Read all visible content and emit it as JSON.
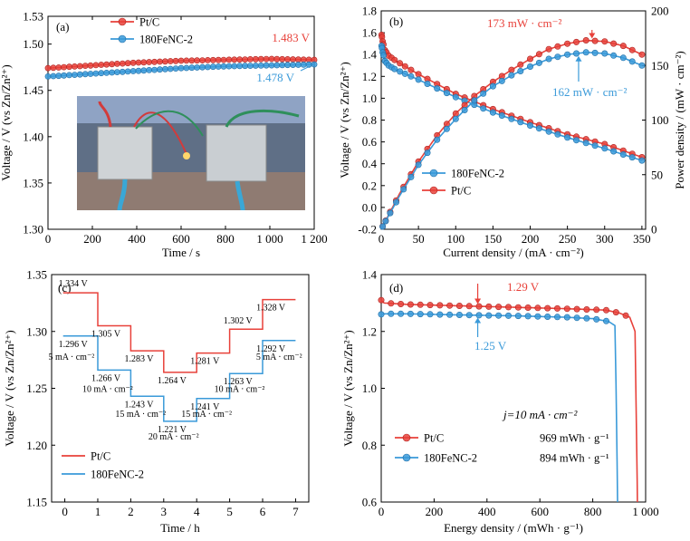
{
  "colors": {
    "red": "#e8413a",
    "blue": "#3a9ad9"
  },
  "chart_data": [
    {
      "panel": "(a)",
      "type": "line",
      "xlabel": "Time / s",
      "ylabel": "Voltage / V (vs Zn/Zn²⁺)",
      "xlim": [
        0,
        1200
      ],
      "ylim": [
        1.3,
        1.53
      ],
      "xticks": [
        0,
        200,
        400,
        600,
        800,
        1000,
        1200
      ],
      "xtick_labels": [
        "0",
        "200",
        "400",
        "600",
        "800",
        "1 000",
        "1 200"
      ],
      "yticks": [
        1.3,
        1.35,
        1.4,
        1.45,
        1.5,
        1.53
      ],
      "ytick_labels": [
        "1.30",
        "1.35",
        "1.40",
        "1.45",
        "1.50",
        "1.53"
      ],
      "legend": [
        "Pt/C",
        "180FeNC-2"
      ],
      "legend_position": "top-left",
      "series": [
        {
          "name": "Pt/C",
          "color": "red",
          "x": [
            0,
            200,
            400,
            600,
            800,
            1000,
            1200
          ],
          "values": [
            1.474,
            1.477,
            1.48,
            1.482,
            1.483,
            1.484,
            1.483
          ]
        },
        {
          "name": "180FeNC-2",
          "color": "blue",
          "x": [
            0,
            200,
            400,
            600,
            800,
            1000,
            1200
          ],
          "values": [
            1.465,
            1.468,
            1.471,
            1.474,
            1.476,
            1.477,
            1.478
          ]
        }
      ],
      "annotations": [
        {
          "text": "1.483 V",
          "color": "red"
        },
        {
          "text": "1.478 V",
          "color": "blue"
        }
      ],
      "inset_photo": true
    },
    {
      "panel": "(b)",
      "type": "line",
      "xlabel": "Current density / (mA · cm⁻²)",
      "ylabel": "Voltage / V (vs Zn/Zn²⁺)",
      "ylabel_right": "Power density / (mW · cm⁻²)",
      "xlim": [
        0,
        355
      ],
      "ylim": [
        -0.2,
        1.8
      ],
      "ylim_right": [
        0,
        200
      ],
      "xticks": [
        0,
        50,
        100,
        150,
        200,
        250,
        300,
        350
      ],
      "yticks": [
        -0.2,
        0.0,
        0.2,
        0.4,
        0.6,
        0.8,
        1.0,
        1.2,
        1.4,
        1.6,
        1.8
      ],
      "ytick_labels": [
        "-0.2",
        "0.0",
        "0.2",
        "0.4",
        "0.6",
        "0.8",
        "1.0",
        "1.2",
        "1.4",
        "1.6",
        "1.8"
      ],
      "yticks_right": [
        0,
        50,
        100,
        150,
        200
      ],
      "legend": [
        "180FeNC-2",
        "Pt/C"
      ],
      "legend_position": "lower-left",
      "series": [
        {
          "name": "Pt/C",
          "kind": "voltage",
          "color": "red",
          "x": [
            0,
            2,
            5,
            10,
            20,
            50,
            100,
            150,
            200,
            250,
            300,
            350
          ],
          "values": [
            1.6,
            1.52,
            1.44,
            1.39,
            1.34,
            1.22,
            1.04,
            0.9,
            0.78,
            0.67,
            0.58,
            0.46
          ]
        },
        {
          "name": "180FeNC-2",
          "kind": "voltage",
          "color": "blue",
          "x": [
            0,
            2,
            5,
            10,
            20,
            50,
            100,
            150,
            200,
            250,
            300,
            350
          ],
          "values": [
            1.5,
            1.42,
            1.34,
            1.3,
            1.26,
            1.17,
            1.01,
            0.87,
            0.75,
            0.64,
            0.54,
            0.43
          ]
        },
        {
          "name": "Pt/C",
          "kind": "power",
          "color": "red",
          "x": [
            0,
            25,
            50,
            75,
            100,
            125,
            150,
            175,
            200,
            225,
            250,
            275,
            300,
            325,
            350
          ],
          "values": [
            0,
            33,
            62,
            86,
            106,
            122,
            135,
            146,
            156,
            165,
            170,
            173,
            172,
            168,
            160
          ]
        },
        {
          "name": "180FeNC-2",
          "kind": "power",
          "color": "blue",
          "x": [
            0,
            25,
            50,
            75,
            100,
            125,
            150,
            175,
            200,
            225,
            250,
            275,
            300,
            325,
            350
          ],
          "values": [
            0,
            31,
            59,
            82,
            101,
            118,
            131,
            141,
            149,
            156,
            160,
            162,
            161,
            157,
            150
          ]
        }
      ],
      "annotations": [
        {
          "text": "173 mW · cm⁻²",
          "color": "red"
        },
        {
          "text": "162 mW · cm⁻²",
          "color": "blue"
        }
      ]
    },
    {
      "panel": "(c)",
      "type": "line",
      "xlabel": "Time / h",
      "ylabel": "Voltage / V (vs Zn/Zn²⁺)",
      "xlim": [
        -0.4,
        7.4
      ],
      "ylim": [
        1.15,
        1.35
      ],
      "xticks": [
        0,
        1,
        2,
        3,
        4,
        5,
        6,
        7
      ],
      "yticks": [
        1.15,
        1.2,
        1.25,
        1.3,
        1.35
      ],
      "ytick_labels": [
        "1.15",
        "1.20",
        "1.25",
        "1.30",
        "1.35"
      ],
      "legend": [
        "Pt/C",
        "180FeNC-2"
      ],
      "legend_position": "lower-left",
      "series": [
        {
          "name": "Pt/C",
          "color": "red",
          "steps": [
            1.334,
            1.305,
            1.283,
            1.264,
            1.281,
            1.302,
            1.328
          ]
        },
        {
          "name": "180FeNC-2",
          "color": "blue",
          "steps": [
            1.296,
            1.266,
            1.243,
            1.221,
            1.241,
            1.263,
            1.292
          ]
        }
      ],
      "value_labels_red": [
        "1.334 V",
        "1.305 V",
        "1.283 V",
        "1.264 V",
        "1.281 V",
        "1.302 V",
        "1.328 V"
      ],
      "value_labels_blue": [
        "1.296 V",
        "1.266 V",
        "1.243 V",
        "1.221 V",
        "1.241 V",
        "1.263 V",
        "1.292 V"
      ],
      "current_labels": [
        "5 mA · cm⁻²",
        "10 mA · cm⁻²",
        "15 mA · cm⁻²",
        "20 mA · cm⁻²",
        "15 mA · cm⁻²",
        "10 mA · cm⁻²",
        "5 mA · cm⁻²"
      ]
    },
    {
      "panel": "(d)",
      "type": "line",
      "xlabel": "Energy density / (mWh · g⁻¹)",
      "ylabel": "Voltage / V (vs Zn/Zn²⁺)",
      "xlim": [
        0,
        1000
      ],
      "ylim": [
        0.6,
        1.4
      ],
      "xticks": [
        0,
        200,
        400,
        600,
        800,
        1000
      ],
      "xtick_labels": [
        "0",
        "200",
        "400",
        "600",
        "800",
        "1 000"
      ],
      "yticks": [
        0.6,
        0.8,
        1.0,
        1.2,
        1.4
      ],
      "ytick_labels": [
        "0.6",
        "0.8",
        "1.0",
        "1.2",
        "1.4"
      ],
      "legend": [
        "Pt/C",
        "180FeNC-2"
      ],
      "legend_position": "lower-left",
      "legend_values": [
        "969 mWh · g⁻¹",
        "894 mWh · g⁻¹"
      ],
      "condition": "j=10 mA · cm⁻²",
      "series": [
        {
          "name": "Pt/C",
          "color": "red",
          "x": [
            0,
            10,
            100,
            300,
            500,
            700,
            850,
            900,
            940,
            960,
            969
          ],
          "values": [
            1.31,
            1.3,
            1.295,
            1.29,
            1.285,
            1.28,
            1.275,
            1.265,
            1.25,
            1.2,
            0.6
          ]
        },
        {
          "name": "180FeNC-2",
          "color": "blue",
          "x": [
            0,
            10,
            100,
            300,
            500,
            700,
            800,
            860,
            885,
            894
          ],
          "values": [
            1.26,
            1.262,
            1.262,
            1.258,
            1.255,
            1.25,
            1.245,
            1.235,
            1.22,
            0.6
          ]
        }
      ],
      "annotations": [
        {
          "text": "1.29 V",
          "color": "red"
        },
        {
          "text": "1.25 V",
          "color": "blue"
        }
      ]
    }
  ]
}
